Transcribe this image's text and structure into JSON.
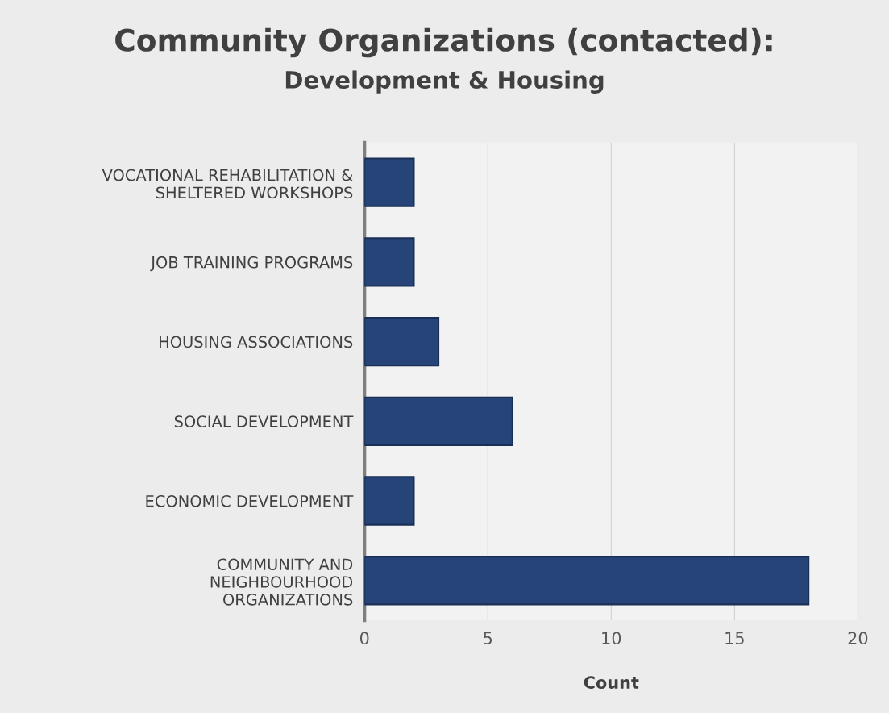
{
  "chart_data": {
    "type": "bar",
    "orientation": "horizontal",
    "title": "Community Organizations (contacted):",
    "subtitle": "Development & Housing",
    "xlabel": "Count",
    "categories": [
      "VOCATIONAL REHABILITATION &\nSHELTERED WORKSHOPS",
      "JOB TRAINING PROGRAMS",
      "HOUSING ASSOCIATIONS",
      "SOCIAL DEVELOPMENT",
      "ECONOMIC DEVELOPMENT",
      "COMMUNITY AND\nNEIGHBOURHOOD\nORGANIZATIONS"
    ],
    "values": [
      2,
      2,
      3,
      6,
      2,
      18
    ],
    "color": "#264478",
    "xlim": [
      0,
      20
    ],
    "xticks": [
      0,
      5,
      10,
      15,
      20
    ],
    "grid": "x"
  }
}
